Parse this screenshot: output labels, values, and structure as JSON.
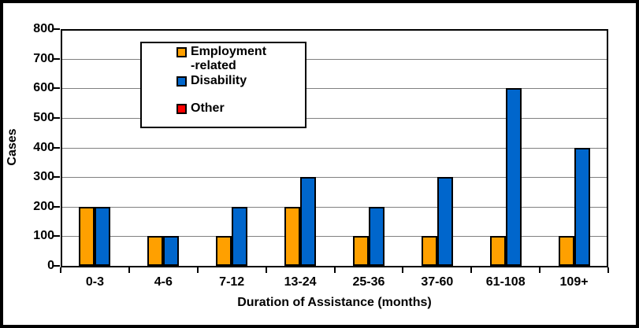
{
  "chart_data": {
    "type": "bar",
    "title": "",
    "xlabel": "Duration of Assistance (months)",
    "ylabel": "Cases",
    "categories": [
      "0-3",
      "4-6",
      "7-12",
      "13-24",
      "25-36",
      "37-60",
      "61-108",
      "109+"
    ],
    "series": [
      {
        "name": "Employment-related",
        "color": "#FFA000",
        "values": [
          200,
          100,
          100,
          200,
          100,
          100,
          100,
          100
        ]
      },
      {
        "name": "Disability",
        "color": "#0066CC",
        "values": [
          200,
          100,
          200,
          300,
          200,
          300,
          600,
          400
        ]
      },
      {
        "name": "Other",
        "color": "#FF0000",
        "values": [
          0,
          0,
          0,
          0,
          0,
          0,
          0,
          0
        ]
      }
    ],
    "ylim": [
      0,
      800
    ],
    "ytick_step": 100,
    "yticks": [
      0,
      100,
      200,
      300,
      400,
      500,
      600,
      700,
      800
    ],
    "grid": true,
    "legend": {
      "position": "upper-left-inside",
      "entries": [
        {
          "lines": [
            "Employment",
            "-related"
          ],
          "color": "#FFA000"
        },
        {
          "lines": [
            "Disability"
          ],
          "color": "#0066CC"
        },
        {
          "lines": [
            "Other"
          ],
          "color": "#FF0000"
        }
      ]
    }
  },
  "colors": {
    "background": "#FFFFFF",
    "frame_border": "#000000",
    "gridline": "#808080",
    "bar_border": "#000000",
    "employment_related": "#FFA000",
    "disability": "#0066CC",
    "other": "#FF0000"
  }
}
